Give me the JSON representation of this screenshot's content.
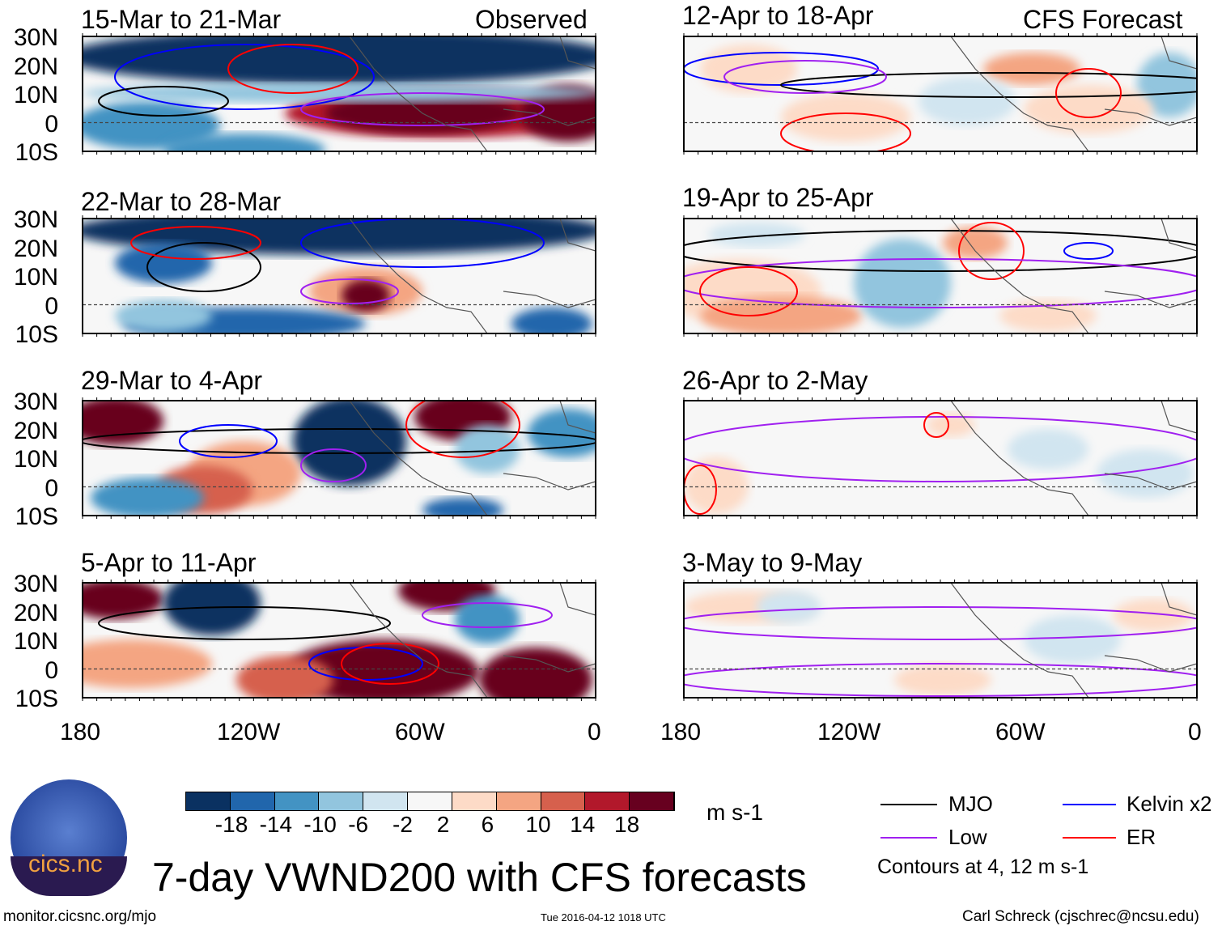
{
  "header": {
    "observed_label": "Observed",
    "forecast_label": "CFS Forecast"
  },
  "panels": {
    "observed": [
      "15-Mar to 21-Mar",
      "22-Mar to 28-Mar",
      "29-Mar to 4-Apr",
      "5-Apr to 11-Apr"
    ],
    "forecast": [
      "12-Apr to 18-Apr",
      "19-Apr to 25-Apr",
      "26-Apr to 2-May",
      "3-May to 9-May"
    ]
  },
  "axes": {
    "lat_labels": [
      "30N",
      "20N",
      "10N",
      "0",
      "10S"
    ],
    "lon_labels": [
      "180",
      "120W",
      "60W",
      "0"
    ]
  },
  "colorbar": {
    "unit": "m s-1",
    "ticks": [
      "-18",
      "-14",
      "-10",
      "-6",
      "-2",
      "2",
      "6",
      "10",
      "14",
      "18"
    ],
    "colors": [
      "#0a3161",
      "#2166ac",
      "#4393c3",
      "#92c5de",
      "#d1e5f0",
      "#f7f7f7",
      "#fddbc7",
      "#f4a582",
      "#d6604d",
      "#b2182b",
      "#67001f"
    ]
  },
  "legend": {
    "items": [
      {
        "label": "MJO",
        "color": "#000000"
      },
      {
        "label": "Kelvin x2",
        "color": "#0000ff"
      },
      {
        "label": "Low",
        "color": "#a020f0"
      },
      {
        "label": "ER",
        "color": "#ff0000"
      }
    ],
    "note": "Contours at 4, 12 m s-1"
  },
  "title": "7-day VWND200 with CFS forecasts",
  "logo_text": "cics.nc",
  "footer": {
    "url": "monitor.cicsnc.org/mjo",
    "timestamp": "Tue 2016-04-12 1018 UTC",
    "author": "Carl Schreck (cjschrec@ncsu.edu)"
  },
  "chart_data": {
    "type": "heatmap",
    "title": "7-day VWND200 with CFS forecasts",
    "variable": "200 hPa meridional wind",
    "unit": "m s-1",
    "xlim": [
      "180",
      "0"
    ],
    "ylim": [
      "10S",
      "30N"
    ],
    "contour_levels": [
      4,
      12
    ],
    "levels": [
      -18,
      -14,
      -10,
      -6,
      -2,
      2,
      6,
      10,
      14,
      18
    ]
  }
}
